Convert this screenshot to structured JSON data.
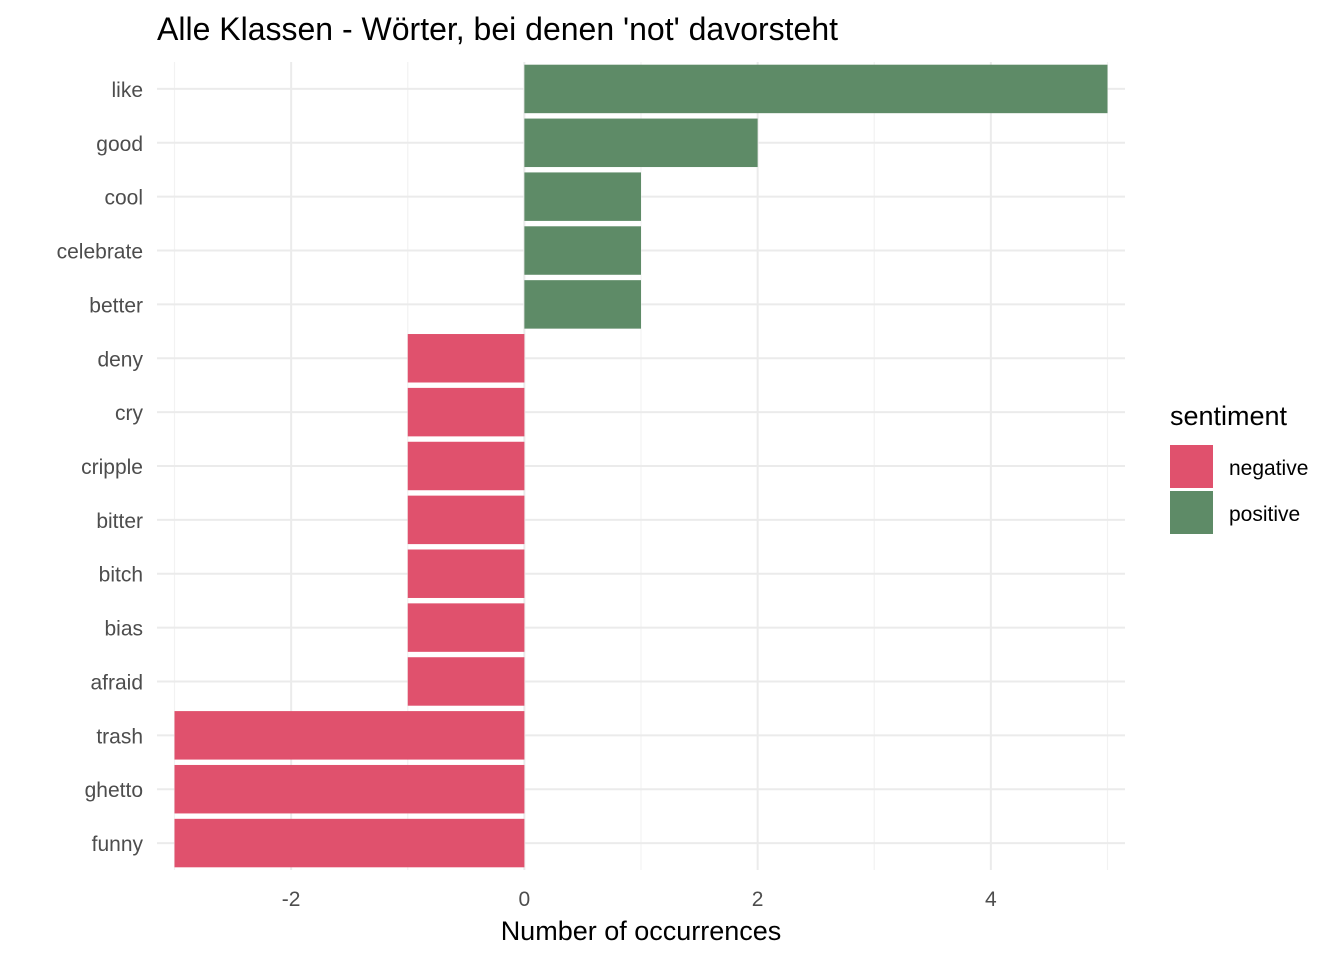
{
  "chart_data": {
    "type": "bar",
    "orientation": "horizontal",
    "title": "Alle Klassen - Wörter, bei denen 'not' davorsteht",
    "xlabel": "Number of occurrences",
    "ylabel": "",
    "xlim": [
      -3.15,
      5.15
    ],
    "x_ticks": [
      -2,
      0,
      2,
      4
    ],
    "grid": true,
    "categories": [
      "like",
      "good",
      "cool",
      "celebrate",
      "better",
      "deny",
      "cry",
      "cripple",
      "bitter",
      "bitch",
      "bias",
      "afraid",
      "trash",
      "ghetto",
      "funny"
    ],
    "values": [
      5,
      2,
      1,
      1,
      1,
      -1,
      -1,
      -1,
      -1,
      -1,
      -1,
      -1,
      -3,
      -3,
      -3
    ],
    "sentiment": [
      "positive",
      "positive",
      "positive",
      "positive",
      "positive",
      "negative",
      "negative",
      "negative",
      "negative",
      "negative",
      "negative",
      "negative",
      "negative",
      "negative",
      "negative"
    ],
    "legend": {
      "title": "sentiment",
      "placement": "right",
      "items": [
        {
          "label": "negative",
          "color": "#E0516D"
        },
        {
          "label": "positive",
          "color": "#5E8B67"
        }
      ]
    }
  }
}
